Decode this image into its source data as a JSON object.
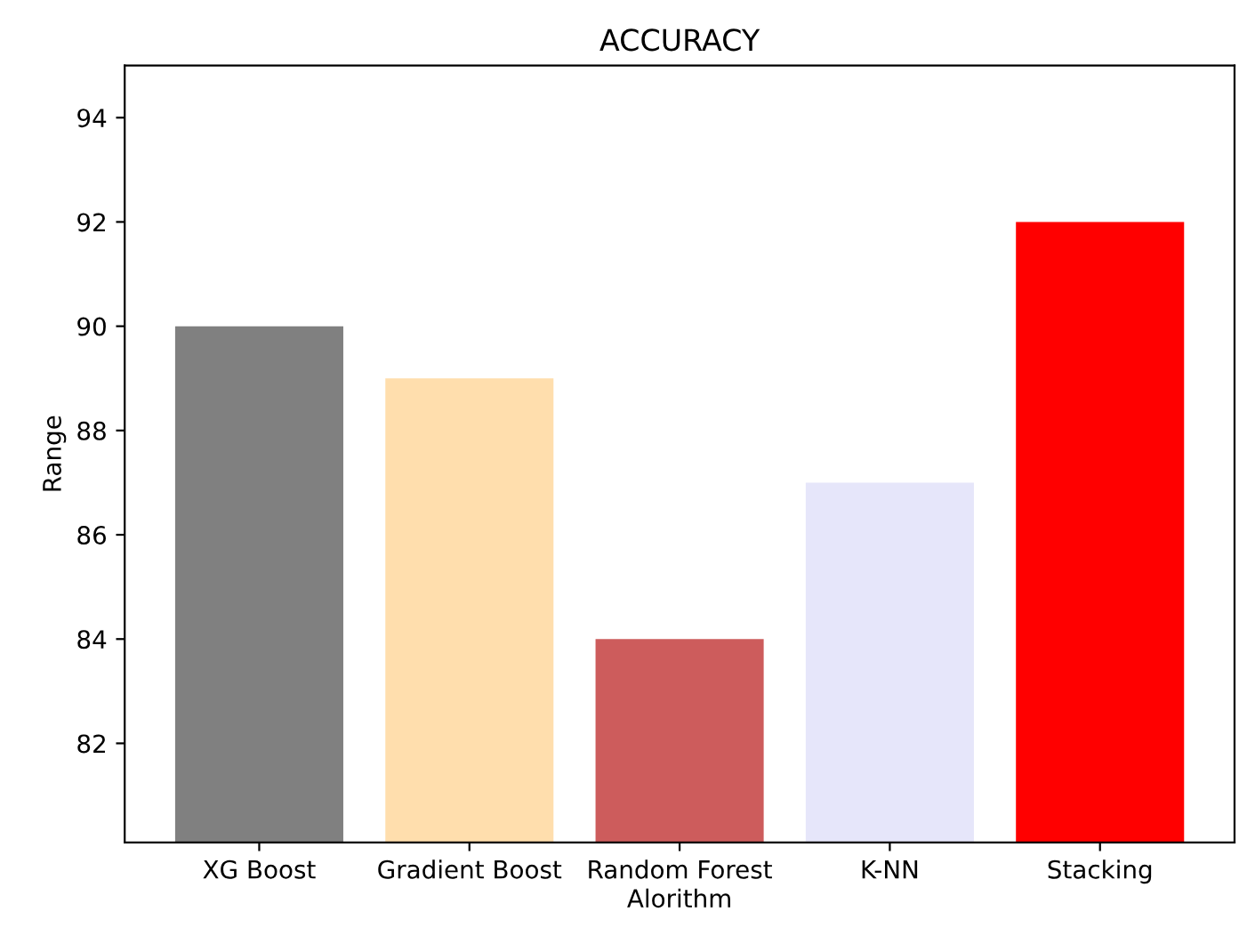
{
  "chart_data": {
    "type": "bar",
    "title": "ACCURACY",
    "xlabel": "Alorithm",
    "ylabel": "Range",
    "categories": [
      "XG Boost",
      "Gradient Boost",
      "Random Forest",
      "K-NN",
      "Stacking"
    ],
    "values": [
      90,
      89,
      84,
      87,
      92
    ],
    "colors": [
      "#808080",
      "#ffdead",
      "#cd5c5c",
      "#e6e6fa",
      "#ff0000"
    ],
    "ylim": [
      80.1,
      95
    ],
    "yticks": [
      82,
      84,
      86,
      88,
      90,
      92,
      94
    ],
    "grid": false
  }
}
